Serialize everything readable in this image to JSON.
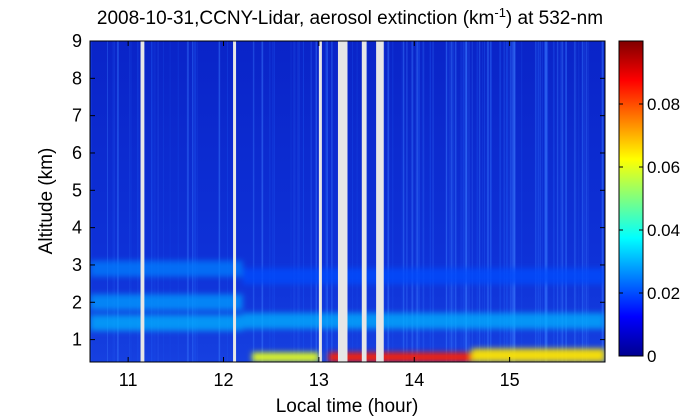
{
  "chart_data": {
    "type": "heatmap",
    "title": {
      "prefix": "2008-10-31,CCNY-Lidar, aerosol extinction (km",
      "superscript": "-1",
      "suffix": ") at 532-nm"
    },
    "xlabel": "Local time (hour)",
    "ylabel": "Altitude (km)",
    "xlim": [
      10.6,
      16.0
    ],
    "ylim": [
      0.4,
      9
    ],
    "x_ticks": [
      11,
      12,
      13,
      14,
      15
    ],
    "y_ticks": [
      1,
      2,
      3,
      4,
      5,
      6,
      7,
      8,
      9
    ],
    "colorbar": {
      "range": [
        0,
        0.1
      ],
      "ticks": [
        0,
        0.02,
        0.04,
        0.06,
        0.08
      ],
      "tick_labels": [
        "0",
        "0.02",
        "0.04",
        "0.06",
        "0.08"
      ],
      "colormap": "jet"
    },
    "data_gaps_hours": [
      [
        11.13,
        11.17
      ],
      [
        12.1,
        12.12
      ],
      [
        13.0,
        13.03
      ],
      [
        13.2,
        13.3
      ],
      [
        13.45,
        13.5
      ],
      [
        13.6,
        13.68
      ]
    ],
    "layers": [
      {
        "feature": "upper aerosol layer",
        "x": [
          10.6,
          12.2
        ],
        "altitude_km": 2.9,
        "extinction": 0.025
      },
      {
        "feature": "middle aerosol layer",
        "x": [
          10.6,
          12.2
        ],
        "altitude_km": 2.0,
        "extinction": 0.028
      },
      {
        "feature": "lower aerosol layer",
        "x": [
          10.6,
          12.2
        ],
        "altitude_km": 1.45,
        "extinction": 0.03
      },
      {
        "feature": "residual layer",
        "x": [
          12.2,
          16.0
        ],
        "altitude_km": 2.7,
        "extinction": 0.02
      },
      {
        "feature": "boundary layer top",
        "x": [
          12.2,
          16.0
        ],
        "altitude_km": 1.5,
        "extinction": 0.03
      },
      {
        "feature": "near-surface high extinction",
        "x": [
          12.3,
          13.0
        ],
        "altitude_km": 0.55,
        "extinction": 0.06
      },
      {
        "feature": "near-surface high extinction",
        "x": [
          13.1,
          14.6
        ],
        "altitude_km": 0.55,
        "extinction": 0.085
      },
      {
        "feature": "near-surface high extinction",
        "x": [
          14.6,
          16.0
        ],
        "altitude_km": 0.65,
        "extinction": 0.065
      }
    ]
  }
}
